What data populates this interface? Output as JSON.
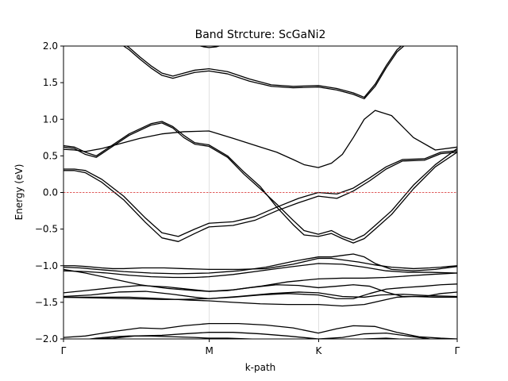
{
  "chart_data": {
    "type": "line",
    "title": "Band Strcture: ScGaNi2",
    "xlabel": "k-path",
    "ylabel": "Energy (eV)",
    "ylim": [
      -2.0,
      2.0
    ],
    "xlim": [
      0,
      3.6
    ],
    "x_ticks": [
      {
        "label": "Γ",
        "value": 0
      },
      {
        "label": "M",
        "value": 1.333
      },
      {
        "label": "K",
        "value": 2.333
      },
      {
        "label": "Γ",
        "value": 3.6
      }
    ],
    "y_ticks": [
      "2.0",
      "1.5",
      "1.0",
      "0.5",
      "0.0",
      "−0.5",
      "−1.0",
      "−1.5",
      "−2.0"
    ],
    "y_tick_values": [
      2.0,
      1.5,
      1.0,
      0.5,
      0.0,
      -0.5,
      -1.0,
      -1.5,
      -2.0
    ],
    "fermi_level": 0.0,
    "vertical_grid": true,
    "colors": {
      "bands": "#000000",
      "fermi": "#d62728",
      "grid": "#d9d9d9"
    },
    "series": [
      {
        "x": [
          0.0,
          0.1,
          0.2,
          0.35,
          0.45,
          0.55,
          0.72,
          0.92,
          1.1,
          1.33,
          1.6,
          1.85,
          2.1,
          2.33,
          2.45,
          2.55,
          2.7,
          2.85,
          3.0,
          3.2,
          3.35,
          3.45,
          3.52,
          3.6
        ],
        "y": [
          -1.0,
          -1.0,
          -1.01,
          -1.03,
          -1.04,
          -1.04,
          -1.03,
          -1.03,
          -1.04,
          -1.05,
          -1.05,
          -1.04,
          -0.98,
          -0.9,
          -0.9,
          -0.92,
          -0.95,
          -0.99,
          -1.02,
          -1.04,
          -1.03,
          -1.02,
          -1.01,
          -1.0
        ]
      },
      {
        "x": [
          0.0,
          0.15,
          0.3,
          0.55,
          0.8,
          1.05,
          1.33,
          1.6,
          1.85,
          2.1,
          2.33,
          2.45,
          2.55,
          2.65,
          2.75,
          2.85,
          3.0,
          3.2,
          3.4,
          3.6
        ],
        "y": [
          -1.02,
          -1.03,
          -1.05,
          -1.08,
          -1.1,
          -1.11,
          -1.1,
          -1.07,
          -1.02,
          -0.94,
          -0.88,
          -0.88,
          -0.86,
          -0.84,
          -0.88,
          -0.97,
          -1.05,
          -1.07,
          -1.05,
          -1.01
        ]
      },
      {
        "x": [
          0.0,
          0.2,
          0.4,
          0.6,
          0.8,
          1.0,
          1.2,
          1.33,
          1.55,
          1.8,
          2.05,
          2.33,
          2.55,
          2.75,
          2.95,
          3.15,
          3.35,
          3.6
        ],
        "y": [
          -1.07,
          -1.08,
          -1.1,
          -1.13,
          -1.15,
          -1.16,
          -1.16,
          -1.15,
          -1.12,
          -1.07,
          -1.02,
          -0.97,
          -0.98,
          -1.02,
          -1.07,
          -1.09,
          -1.09,
          -1.1
        ]
      },
      {
        "x": [
          0.0,
          0.2,
          0.45,
          0.7,
          0.95,
          1.2,
          1.33,
          1.55,
          1.8,
          2.05,
          2.33,
          2.55,
          2.75,
          2.95,
          3.15,
          3.35,
          3.6
        ],
        "y": [
          -1.05,
          -1.1,
          -1.18,
          -1.26,
          -1.31,
          -1.34,
          -1.35,
          -1.33,
          -1.28,
          -1.22,
          -1.18,
          -1.17,
          -1.17,
          -1.16,
          -1.14,
          -1.12,
          -1.1
        ]
      },
      {
        "x": [
          0.0,
          0.2,
          0.45,
          0.7,
          0.95,
          1.2,
          1.33,
          1.5,
          1.7,
          1.95,
          2.15,
          2.33,
          2.5,
          2.65,
          2.8,
          2.95,
          3.1,
          3.3,
          3.45,
          3.6
        ],
        "y": [
          -1.37,
          -1.34,
          -1.3,
          -1.27,
          -1.29,
          -1.33,
          -1.35,
          -1.34,
          -1.3,
          -1.26,
          -1.27,
          -1.3,
          -1.28,
          -1.26,
          -1.28,
          -1.36,
          -1.42,
          -1.42,
          -1.38,
          -1.36
        ]
      },
      {
        "x": [
          0.0,
          0.25,
          0.5,
          0.75,
          1.0,
          1.2,
          1.33,
          1.55,
          1.8,
          2.05,
          2.33,
          2.5,
          2.65,
          2.8,
          2.95,
          3.1,
          3.3,
          3.45,
          3.6
        ],
        "y": [
          -1.42,
          -1.4,
          -1.36,
          -1.35,
          -1.39,
          -1.43,
          -1.45,
          -1.43,
          -1.4,
          -1.38,
          -1.4,
          -1.45,
          -1.45,
          -1.38,
          -1.32,
          -1.3,
          -1.28,
          -1.26,
          -1.25
        ]
      },
      {
        "x": [
          0.0,
          0.3,
          0.6,
          0.9,
          1.15,
          1.33,
          1.55,
          1.8,
          2.05,
          2.33,
          2.55,
          2.75,
          2.9,
          3.05,
          3.2,
          3.4,
          3.6
        ],
        "y": [
          -1.43,
          -1.43,
          -1.43,
          -1.45,
          -1.47,
          -1.48,
          -1.5,
          -1.52,
          -1.53,
          -1.53,
          -1.55,
          -1.53,
          -1.48,
          -1.43,
          -1.42,
          -1.43,
          -1.43
        ]
      },
      {
        "x": [
          0.0,
          0.3,
          0.6,
          0.9,
          1.1,
          1.33,
          1.6,
          1.9,
          2.15,
          2.33,
          2.55,
          2.75,
          2.9,
          3.1,
          3.35,
          3.6
        ],
        "y": [
          -1.43,
          -1.44,
          -1.45,
          -1.46,
          -1.46,
          -1.45,
          -1.42,
          -1.38,
          -1.36,
          -1.37,
          -1.42,
          -1.43,
          -1.4,
          -1.39,
          -1.41,
          -1.42
        ]
      },
      {
        "x": [
          0.0,
          0.2,
          0.45,
          0.7,
          0.9,
          1.1,
          1.33,
          1.6,
          1.85,
          2.1,
          2.33,
          2.5,
          2.65,
          2.85,
          3.05,
          3.25,
          3.45,
          3.6
        ],
        "y": [
          -1.98,
          -1.96,
          -1.9,
          -1.85,
          -1.86,
          -1.82,
          -1.79,
          -1.79,
          -1.81,
          -1.85,
          -1.92,
          -1.86,
          -1.82,
          -1.83,
          -1.91,
          -1.97,
          -1.99,
          -2.0
        ]
      },
      {
        "x": [
          0.0,
          0.25,
          0.45,
          0.65,
          0.9,
          1.1,
          1.33,
          1.55,
          1.8,
          2.05,
          2.33,
          2.55,
          2.75,
          2.95,
          3.15,
          3.35,
          3.6
        ],
        "y": [
          -2.02,
          -2.0,
          -1.99,
          -1.96,
          -1.95,
          -1.93,
          -1.91,
          -1.91,
          -1.93,
          -1.96,
          -2.0,
          -1.98,
          -1.93,
          -1.92,
          -1.96,
          -2.0,
          -2.02
        ]
      },
      {
        "x": [
          0.0,
          0.15,
          0.3,
          0.45,
          0.6,
          0.8,
          1.0,
          1.2,
          1.33,
          1.5,
          1.7,
          1.9,
          2.1,
          2.33,
          2.55,
          2.75,
          2.95,
          3.15,
          3.35,
          3.6
        ],
        "y": [
          -2.05,
          -2.02,
          -1.99,
          -1.97,
          -1.96,
          -1.96,
          -1.97,
          -1.98,
          -1.99,
          -1.99,
          -2.0,
          -2.01,
          -2.02,
          -2.03,
          -2.02,
          -2.0,
          -1.99,
          -2.01,
          -2.03,
          -2.05
        ]
      },
      {
        "x": [
          0.0,
          0.1,
          0.2,
          0.35,
          0.55,
          0.75,
          0.9,
          1.05,
          1.2,
          1.33,
          1.55,
          1.75,
          1.95,
          2.15,
          2.33,
          2.5,
          2.65,
          2.8,
          2.95,
          3.1,
          3.3,
          3.45,
          3.6
        ],
        "y": [
          0.32,
          0.32,
          0.3,
          0.18,
          -0.05,
          -0.35,
          -0.55,
          -0.6,
          -0.5,
          -0.42,
          -0.4,
          -0.33,
          -0.2,
          -0.08,
          0.0,
          -0.02,
          0.06,
          0.2,
          0.35,
          0.45,
          0.46,
          0.55,
          0.57
        ]
      },
      {
        "x": [
          0.0,
          0.1,
          0.2,
          0.35,
          0.55,
          0.75,
          0.9,
          1.05,
          1.2,
          1.33,
          1.55,
          1.75,
          1.95,
          2.15,
          2.33,
          2.5,
          2.65,
          2.8,
          2.95,
          3.1,
          3.3,
          3.45,
          3.6
        ],
        "y": [
          0.3,
          0.3,
          0.27,
          0.14,
          -0.1,
          -0.41,
          -0.62,
          -0.67,
          -0.56,
          -0.47,
          -0.45,
          -0.38,
          -0.25,
          -0.14,
          -0.05,
          -0.08,
          0.02,
          0.16,
          0.32,
          0.43,
          0.44,
          0.53,
          0.55
        ]
      },
      {
        "x": [
          0.0,
          0.1,
          0.2,
          0.35,
          0.5,
          0.7,
          0.9,
          1.1,
          1.33,
          1.55,
          1.8,
          1.95,
          2.1,
          2.2,
          2.33,
          2.45,
          2.55,
          2.65,
          2.75,
          2.85,
          3.0,
          3.2,
          3.4,
          3.6
        ],
        "y": [
          0.59,
          0.58,
          0.56,
          0.6,
          0.66,
          0.74,
          0.8,
          0.83,
          0.84,
          0.74,
          0.62,
          0.55,
          0.45,
          0.38,
          0.34,
          0.4,
          0.52,
          0.75,
          1.0,
          1.12,
          1.05,
          0.75,
          0.58,
          0.62
        ]
      },
      {
        "x": [
          0.0,
          0.1,
          0.2,
          0.3,
          0.4,
          0.6,
          0.8,
          0.9,
          1.0,
          1.1,
          1.2,
          1.33,
          1.5,
          1.65,
          1.8,
          1.95,
          2.1,
          2.2,
          2.33,
          2.45,
          2.55,
          2.65,
          2.75,
          2.85,
          3.0,
          3.2,
          3.4,
          3.6
        ],
        "y": [
          0.62,
          0.6,
          0.52,
          0.48,
          0.58,
          0.78,
          0.92,
          0.95,
          0.88,
          0.75,
          0.66,
          0.63,
          0.48,
          0.25,
          0.05,
          -0.16,
          -0.38,
          -0.52,
          -0.57,
          -0.52,
          -0.6,
          -0.65,
          -0.58,
          -0.45,
          -0.25,
          0.1,
          0.38,
          0.6
        ]
      },
      {
        "x": [
          0.0,
          0.1,
          0.2,
          0.3,
          0.4,
          0.6,
          0.8,
          0.9,
          1.0,
          1.1,
          1.2,
          1.33,
          1.5,
          1.65,
          1.8,
          1.95,
          2.1,
          2.2,
          2.33,
          2.45,
          2.55,
          2.65,
          2.75,
          2.85,
          3.0,
          3.2,
          3.4,
          3.6
        ],
        "y": [
          0.64,
          0.62,
          0.55,
          0.5,
          0.6,
          0.8,
          0.94,
          0.97,
          0.9,
          0.78,
          0.68,
          0.65,
          0.5,
          0.28,
          0.08,
          -0.2,
          -0.44,
          -0.58,
          -0.6,
          -0.56,
          -0.63,
          -0.69,
          -0.63,
          -0.5,
          -0.3,
          0.05,
          0.35,
          0.55
        ]
      },
      {
        "x": [
          0.5,
          0.6,
          0.7,
          0.8,
          0.9,
          1.0,
          1.1,
          1.2,
          1.33,
          1.5,
          1.7,
          1.9,
          2.1,
          2.33,
          2.5,
          2.65,
          2.75,
          2.85,
          2.95,
          3.05,
          3.15
        ],
        "y": [
          2.05,
          1.95,
          1.82,
          1.7,
          1.6,
          1.56,
          1.6,
          1.64,
          1.66,
          1.62,
          1.52,
          1.45,
          1.43,
          1.44,
          1.4,
          1.34,
          1.28,
          1.45,
          1.7,
          1.92,
          2.05
        ]
      },
      {
        "x": [
          0.5,
          0.6,
          0.7,
          0.8,
          0.9,
          1.0,
          1.1,
          1.2,
          1.33,
          1.5,
          1.7,
          1.9,
          2.1,
          2.33,
          2.5,
          2.65,
          2.75,
          2.85,
          2.95,
          3.05,
          3.15
        ],
        "y": [
          2.08,
          1.98,
          1.85,
          1.73,
          1.63,
          1.59,
          1.63,
          1.67,
          1.69,
          1.65,
          1.55,
          1.47,
          1.45,
          1.46,
          1.42,
          1.36,
          1.3,
          1.48,
          1.73,
          1.95,
          2.08
        ]
      },
      {
        "x": [
          1.2,
          1.28,
          1.33,
          1.4,
          1.47
        ],
        "y": [
          2.02,
          1.99,
          1.98,
          1.99,
          2.02
        ]
      }
    ]
  }
}
